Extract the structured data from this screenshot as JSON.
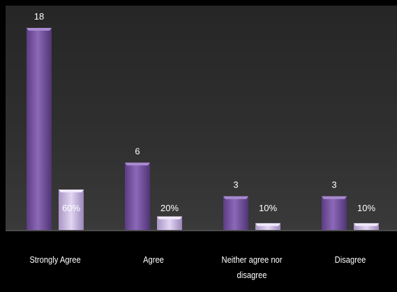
{
  "chart_data": {
    "type": "bar",
    "categories": [
      "Strongly Agree",
      "Agree",
      "Neither agree nor disagree",
      "Disagree"
    ],
    "category_labels": [
      [
        "Strongly Agree"
      ],
      [
        "Agree"
      ],
      [
        "Neither agree nor",
        "disagree"
      ],
      [
        "Disagree"
      ]
    ],
    "series": [
      {
        "values": [
          18,
          6,
          3,
          3
        ],
        "labels": [
          "18",
          "6",
          "3",
          "3"
        ],
        "color": "#7b58a6"
      },
      {
        "values": [
          0.6,
          0.2,
          0.1,
          0.1
        ],
        "labels": [
          "60%",
          "20%",
          "10%",
          "10%"
        ],
        "color": "#c9b6e2"
      }
    ],
    "ylim": [
      0,
      18
    ],
    "grid": false,
    "title": "",
    "xlabel": "",
    "ylabel": ""
  },
  "colors": {
    "background": "#000000",
    "plot_area": "#2e2e2e",
    "bar_primary": "#7b58a6",
    "bar_secondary": "#c9b6e2",
    "text": "#ffffff"
  }
}
